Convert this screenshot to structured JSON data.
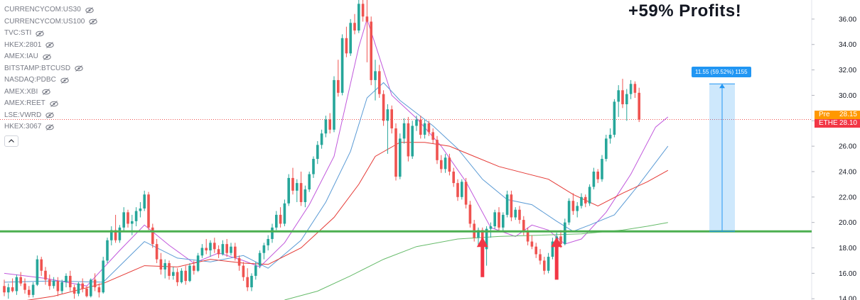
{
  "headline": "+59% Profits!",
  "legend": {
    "symbols": [
      "CURRENCYCOM:US30",
      "CURRENCYCOM:US100",
      "TVC:STI",
      "HKEX:2801",
      "AMEX:IAU",
      "BITSTAMP:BTCUSD",
      "NASDAQ:PDBC",
      "AMEX:XBI",
      "AMEX:REET",
      "LSE:VWRD",
      "HKEX:3067"
    ]
  },
  "price_tags": {
    "pre": {
      "label": "Pre",
      "value": "28.15",
      "color": "#ff9800"
    },
    "last": {
      "label": "ETHE",
      "value": "28.10",
      "color": "#f23645"
    }
  },
  "measure": {
    "label": "11.55 (59.52%) 1155",
    "from_price": 19.3,
    "to_price": 30.9,
    "color": "#2196f3"
  },
  "colors": {
    "up": "#26a69a",
    "down": "#ef5350",
    "support_line": "#4caf50",
    "ma_fast": "#c158dc",
    "ma_mid": "#5b9bd5",
    "ma_slow": "#e53935",
    "ma_long": "#66bb6a",
    "arrow": "#f23645"
  },
  "chart_data": {
    "type": "candlestick",
    "ylim": [
      13.9,
      37.5
    ],
    "yticks": [
      "14.00",
      "16.00",
      "18.00",
      "20.00",
      "22.00",
      "24.00",
      "26.00",
      "28.00",
      "30.00",
      "32.00",
      "34.00",
      "36.00"
    ],
    "support_level": 19.3,
    "last_price": 28.1,
    "candles": [
      [
        15.0,
        15.5,
        14.2,
        14.5
      ],
      [
        14.5,
        15.2,
        14.0,
        14.9
      ],
      [
        14.9,
        15.6,
        14.5,
        14.6
      ],
      [
        14.6,
        15.9,
        14.3,
        15.7
      ],
      [
        15.7,
        16.1,
        15.0,
        15.2
      ],
      [
        15.2,
        15.6,
        14.4,
        14.7
      ],
      [
        14.7,
        15.0,
        14.1,
        14.3
      ],
      [
        14.3,
        15.3,
        14.1,
        15.1
      ],
      [
        15.1,
        17.4,
        15.0,
        17.1
      ],
      [
        17.1,
        17.3,
        15.8,
        16.2
      ],
      [
        16.2,
        16.5,
        15.1,
        15.5
      ],
      [
        15.5,
        15.9,
        14.7,
        15.0
      ],
      [
        15.0,
        15.7,
        14.8,
        15.4
      ],
      [
        15.4,
        15.7,
        14.2,
        14.6
      ],
      [
        14.6,
        15.5,
        14.4,
        15.3
      ],
      [
        15.3,
        16.0,
        14.9,
        15.8
      ],
      [
        15.8,
        16.2,
        14.6,
        14.9
      ],
      [
        14.9,
        15.1,
        14.0,
        14.4
      ],
      [
        14.4,
        15.3,
        14.2,
        15.2
      ],
      [
        15.2,
        15.6,
        14.5,
        14.8
      ],
      [
        14.8,
        15.0,
        14.1,
        14.2
      ],
      [
        14.2,
        15.6,
        14.1,
        15.5
      ],
      [
        15.5,
        16.0,
        14.6,
        14.9
      ],
      [
        14.9,
        15.2,
        14.1,
        14.5
      ],
      [
        14.5,
        17.3,
        14.4,
        17.0
      ],
      [
        17.0,
        18.8,
        16.8,
        18.6
      ],
      [
        18.6,
        19.7,
        18.2,
        19.4
      ],
      [
        19.4,
        20.6,
        18.4,
        18.6
      ],
      [
        18.6,
        19.8,
        18.4,
        19.6
      ],
      [
        19.6,
        21.2,
        19.3,
        20.8
      ],
      [
        20.8,
        21.0,
        19.6,
        19.9
      ],
      [
        19.9,
        20.6,
        19.0,
        20.1
      ],
      [
        20.1,
        21.2,
        19.7,
        20.9
      ],
      [
        20.9,
        21.6,
        20.4,
        21.1
      ],
      [
        21.1,
        22.5,
        20.9,
        22.2
      ],
      [
        22.2,
        22.4,
        19.4,
        19.6
      ],
      [
        19.6,
        19.9,
        18.0,
        18.3
      ],
      [
        18.3,
        18.7,
        16.8,
        17.1
      ],
      [
        17.1,
        17.6,
        15.9,
        16.3
      ],
      [
        16.3,
        17.1,
        15.6,
        16.8
      ],
      [
        16.8,
        17.0,
        15.5,
        15.8
      ],
      [
        15.8,
        16.5,
        15.5,
        16.1
      ],
      [
        16.1,
        16.4,
        15.0,
        15.3
      ],
      [
        15.3,
        16.4,
        15.2,
        16.2
      ],
      [
        16.2,
        16.6,
        15.1,
        15.4
      ],
      [
        15.4,
        16.8,
        15.3,
        16.6
      ],
      [
        16.6,
        17.0,
        15.9,
        16.2
      ],
      [
        16.2,
        17.6,
        16.1,
        17.4
      ],
      [
        17.4,
        18.3,
        17.2,
        18.0
      ],
      [
        18.0,
        18.7,
        17.5,
        17.8
      ],
      [
        17.8,
        18.6,
        17.3,
        18.4
      ],
      [
        18.4,
        18.8,
        17.6,
        17.9
      ],
      [
        17.9,
        18.2,
        17.2,
        17.5
      ],
      [
        17.5,
        18.6,
        17.4,
        18.3
      ],
      [
        18.3,
        18.7,
        17.3,
        17.6
      ],
      [
        17.6,
        18.4,
        17.4,
        18.1
      ],
      [
        18.1,
        18.4,
        17.0,
        17.2
      ],
      [
        17.2,
        17.4,
        16.2,
        16.6
      ],
      [
        16.6,
        16.9,
        15.4,
        15.7
      ],
      [
        15.7,
        16.4,
        14.6,
        14.9
      ],
      [
        14.9,
        16.0,
        14.6,
        15.8
      ],
      [
        15.8,
        16.9,
        15.5,
        16.6
      ],
      [
        16.6,
        17.8,
        16.4,
        17.6
      ],
      [
        17.6,
        18.4,
        17.1,
        18.2
      ],
      [
        18.2,
        19.0,
        17.8,
        18.7
      ],
      [
        18.7,
        19.9,
        18.4,
        19.6
      ],
      [
        19.6,
        20.9,
        19.4,
        20.6
      ],
      [
        20.6,
        21.2,
        19.6,
        19.9
      ],
      [
        19.9,
        21.8,
        19.7,
        21.5
      ],
      [
        21.5,
        23.8,
        21.3,
        23.5
      ],
      [
        23.5,
        24.3,
        22.2,
        22.5
      ],
      [
        22.5,
        23.4,
        21.6,
        23.1
      ],
      [
        23.1,
        24.0,
        21.3,
        21.6
      ],
      [
        21.6,
        22.9,
        21.2,
        22.6
      ],
      [
        22.6,
        24.0,
        22.4,
        23.8
      ],
      [
        23.8,
        25.2,
        23.5,
        25.0
      ],
      [
        25.0,
        26.4,
        24.6,
        26.1
      ],
      [
        26.1,
        27.3,
        25.8,
        27.0
      ],
      [
        27.0,
        28.4,
        26.7,
        28.1
      ],
      [
        28.1,
        28.6,
        27.0,
        27.3
      ],
      [
        27.3,
        31.5,
        27.1,
        31.2
      ],
      [
        31.2,
        32.8,
        29.9,
        30.2
      ],
      [
        30.2,
        34.8,
        30.0,
        34.5
      ],
      [
        34.5,
        35.4,
        33.0,
        33.3
      ],
      [
        33.3,
        36.0,
        33.1,
        35.7
      ],
      [
        35.7,
        36.4,
        34.8,
        35.1
      ],
      [
        35.1,
        37.6,
        34.9,
        37.2
      ],
      [
        37.2,
        37.5,
        35.8,
        36.2
      ],
      [
        36.2,
        37.5,
        32.6,
        35.8
      ],
      [
        35.8,
        36.2,
        30.8,
        31.2
      ],
      [
        31.2,
        32.8,
        29.6,
        31.9
      ],
      [
        31.9,
        32.4,
        29.8,
        30.1
      ],
      [
        30.1,
        30.4,
        27.6,
        28.0
      ],
      [
        28.0,
        29.3,
        25.4,
        28.9
      ],
      [
        28.9,
        29.2,
        27.0,
        27.4
      ],
      [
        27.4,
        27.8,
        23.3,
        23.6
      ],
      [
        23.6,
        27.0,
        23.4,
        26.6
      ],
      [
        26.6,
        28.2,
        26.2,
        27.8
      ],
      [
        27.8,
        28.3,
        24.8,
        25.2
      ],
      [
        25.2,
        28.0,
        25.0,
        27.6
      ],
      [
        27.6,
        28.4,
        27.2,
        28.1
      ],
      [
        28.1,
        28.4,
        26.6,
        26.9
      ],
      [
        26.9,
        28.1,
        26.6,
        27.8
      ],
      [
        27.8,
        28.0,
        26.8,
        27.1
      ],
      [
        27.1,
        27.4,
        26.2,
        26.5
      ],
      [
        26.5,
        26.8,
        24.6,
        24.9
      ],
      [
        24.9,
        25.3,
        23.9,
        24.2
      ],
      [
        24.2,
        25.4,
        23.9,
        25.1
      ],
      [
        25.1,
        25.4,
        23.7,
        24.0
      ],
      [
        24.0,
        24.3,
        22.8,
        23.1
      ],
      [
        23.1,
        23.4,
        21.7,
        22.0
      ],
      [
        22.0,
        23.4,
        21.8,
        23.2
      ],
      [
        23.2,
        23.5,
        21.1,
        21.4
      ],
      [
        21.4,
        21.7,
        19.6,
        19.9
      ],
      [
        19.9,
        20.2,
        18.5,
        18.8
      ],
      [
        18.8,
        19.6,
        18.1,
        19.4
      ],
      [
        19.4,
        19.6,
        17.6,
        17.9
      ],
      [
        17.9,
        19.7,
        16.6,
        19.5
      ],
      [
        19.5,
        20.0,
        18.8,
        19.7
      ],
      [
        19.7,
        21.0,
        19.5,
        20.8
      ],
      [
        20.8,
        21.2,
        19.4,
        19.6
      ],
      [
        19.6,
        20.8,
        19.3,
        20.6
      ],
      [
        20.6,
        22.5,
        20.4,
        22.2
      ],
      [
        22.2,
        22.5,
        20.1,
        20.4
      ],
      [
        20.4,
        21.2,
        20.2,
        21.0
      ],
      [
        21.0,
        21.3,
        19.9,
        20.2
      ],
      [
        20.2,
        20.5,
        19.0,
        19.3
      ],
      [
        19.3,
        19.6,
        18.2,
        18.5
      ],
      [
        18.5,
        19.0,
        17.9,
        18.1
      ],
      [
        18.1,
        18.4,
        17.2,
        17.5
      ],
      [
        17.5,
        17.9,
        16.7,
        17.0
      ],
      [
        17.0,
        17.3,
        15.9,
        16.2
      ],
      [
        16.2,
        17.6,
        16.0,
        17.3
      ],
      [
        17.3,
        18.8,
        17.1,
        18.5
      ],
      [
        18.5,
        19.2,
        18.2,
        18.9
      ],
      [
        18.9,
        19.4,
        18.0,
        18.3
      ],
      [
        18.3,
        20.3,
        18.2,
        20.0
      ],
      [
        20.0,
        21.9,
        19.8,
        21.7
      ],
      [
        21.7,
        22.3,
        20.6,
        20.9
      ],
      [
        20.9,
        21.6,
        20.4,
        21.3
      ],
      [
        21.3,
        22.3,
        21.1,
        22.0
      ],
      [
        22.0,
        22.2,
        21.2,
        21.5
      ],
      [
        21.5,
        23.0,
        21.3,
        22.8
      ],
      [
        22.8,
        24.3,
        22.6,
        24.0
      ],
      [
        24.0,
        24.2,
        23.1,
        23.4
      ],
      [
        23.4,
        25.3,
        23.2,
        25.0
      ],
      [
        25.0,
        26.9,
        24.8,
        26.6
      ],
      [
        26.6,
        27.4,
        26.2,
        26.9
      ],
      [
        26.9,
        29.7,
        26.7,
        29.5
      ],
      [
        29.5,
        30.8,
        28.3,
        30.4
      ],
      [
        30.4,
        31.3,
        29.0,
        29.3
      ],
      [
        29.3,
        30.5,
        28.0,
        30.1
      ],
      [
        30.1,
        31.2,
        29.7,
        30.9
      ],
      [
        30.9,
        31.1,
        29.8,
        30.2
      ],
      [
        30.2,
        30.6,
        27.9,
        28.1
      ]
    ],
    "moving_averages": [
      {
        "key": "ma_fast",
        "points": [
          [
            0,
            16.0
          ],
          [
            10,
            15.6
          ],
          [
            20,
            15.0
          ],
          [
            28,
            17.8
          ],
          [
            34,
            19.8
          ],
          [
            40,
            18.2
          ],
          [
            46,
            16.8
          ],
          [
            52,
            17.6
          ],
          [
            58,
            17.0
          ],
          [
            62,
            16.5
          ],
          [
            68,
            18.4
          ],
          [
            74,
            21.4
          ],
          [
            80,
            25.2
          ],
          [
            86,
            33.8
          ],
          [
            88,
            36.0
          ],
          [
            90,
            34.0
          ],
          [
            94,
            30.0
          ],
          [
            100,
            28.2
          ],
          [
            106,
            26.0
          ],
          [
            112,
            23.2
          ],
          [
            118,
            19.6
          ],
          [
            124,
            18.9
          ],
          [
            128,
            19.8
          ],
          [
            132,
            19.4
          ],
          [
            136,
            18.3
          ],
          [
            140,
            18.7
          ],
          [
            146,
            20.8
          ],
          [
            152,
            23.8
          ],
          [
            158,
            27.5
          ],
          [
            161,
            28.3
          ]
        ]
      },
      {
        "key": "ma_mid",
        "points": [
          [
            0,
            15.3
          ],
          [
            12,
            15.4
          ],
          [
            24,
            15.3
          ],
          [
            34,
            18.5
          ],
          [
            42,
            17.2
          ],
          [
            50,
            16.9
          ],
          [
            58,
            17.4
          ],
          [
            64,
            16.4
          ],
          [
            72,
            18.6
          ],
          [
            78,
            21.6
          ],
          [
            84,
            25.6
          ],
          [
            88,
            29.8
          ],
          [
            92,
            31.0
          ],
          [
            96,
            29.6
          ],
          [
            104,
            27.6
          ],
          [
            110,
            25.8
          ],
          [
            116,
            23.4
          ],
          [
            122,
            21.8
          ],
          [
            128,
            21.4
          ],
          [
            134,
            20.1
          ],
          [
            138,
            19.3
          ],
          [
            142,
            19.8
          ],
          [
            148,
            20.6
          ],
          [
            154,
            23.0
          ],
          [
            161,
            26.0
          ]
        ]
      },
      {
        "key": "ma_slow",
        "points": [
          [
            0,
            13.6
          ],
          [
            12,
            14.2
          ],
          [
            24,
            15.2
          ],
          [
            34,
            16.6
          ],
          [
            42,
            16.5
          ],
          [
            50,
            17.1
          ],
          [
            58,
            16.8
          ],
          [
            64,
            16.7
          ],
          [
            72,
            18.0
          ],
          [
            80,
            20.4
          ],
          [
            86,
            23.0
          ],
          [
            90,
            25.2
          ],
          [
            96,
            26.3
          ],
          [
            102,
            26.3
          ],
          [
            108,
            26.0
          ],
          [
            114,
            25.2
          ],
          [
            120,
            24.4
          ],
          [
            126,
            23.9
          ],
          [
            132,
            23.4
          ],
          [
            138,
            22.2
          ],
          [
            144,
            21.3
          ],
          [
            150,
            22.3
          ],
          [
            156,
            23.2
          ],
          [
            161,
            24.1
          ]
        ]
      },
      {
        "key": "ma_long",
        "points": [
          [
            68,
            13.9
          ],
          [
            76,
            14.6
          ],
          [
            84,
            15.8
          ],
          [
            92,
            17.1
          ],
          [
            100,
            18.1
          ],
          [
            110,
            18.7
          ],
          [
            120,
            18.9
          ],
          [
            130,
            19.0
          ],
          [
            140,
            19.1
          ],
          [
            150,
            19.4
          ],
          [
            156,
            19.7
          ],
          [
            161,
            20.0
          ]
        ]
      }
    ],
    "arrows": [
      {
        "index": 116,
        "price": 15.7
      },
      {
        "index": 134,
        "price": 15.5
      }
    ]
  }
}
